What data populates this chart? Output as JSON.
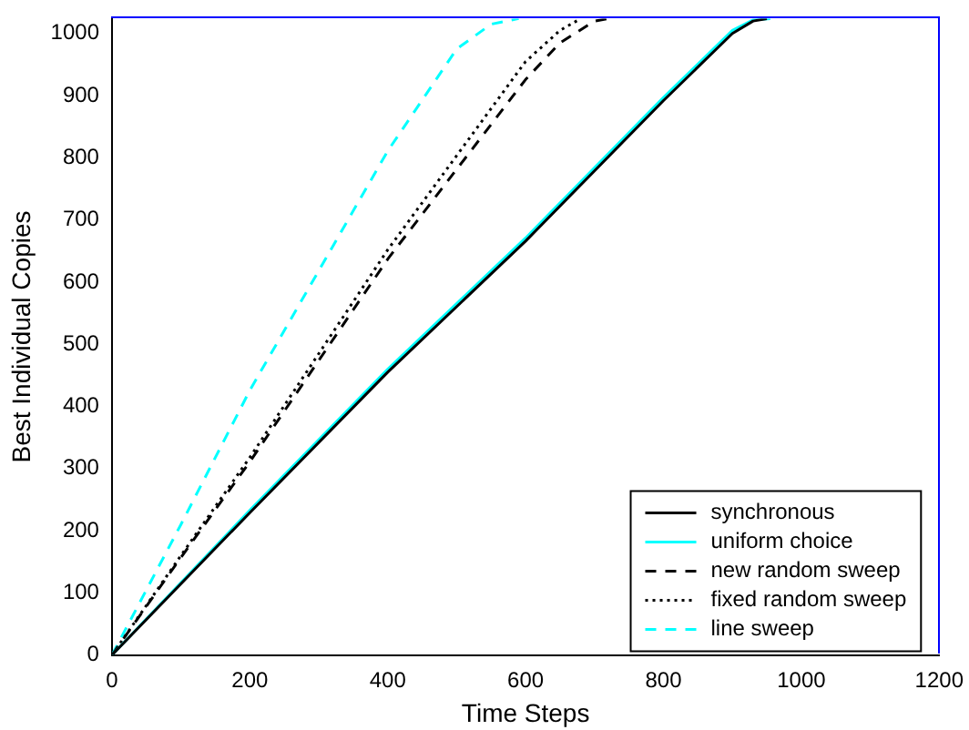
{
  "chart_data": {
    "type": "line",
    "xlabel": "Time Steps",
    "ylabel": "Best Individual Copies",
    "xlim": [
      0,
      1200
    ],
    "ylim": [
      0,
      1024
    ],
    "xticks": [
      0,
      200,
      400,
      600,
      800,
      1000,
      1200
    ],
    "yticks": [
      0,
      100,
      200,
      300,
      400,
      500,
      600,
      700,
      800,
      900,
      1000
    ],
    "grid": false,
    "legend": "bottom right",
    "marker": "none",
    "series": [
      {
        "name": "synchronous",
        "color": "#000000",
        "line_style": "solid",
        "x": [
          0,
          200,
          400,
          600,
          800,
          900,
          930,
          950
        ],
        "values": [
          0,
          229,
          455,
          666,
          892,
          1000,
          1020,
          1024
        ]
      },
      {
        "name": "uniform choice",
        "color": "#00ffff",
        "line_style": "solid",
        "x": [
          0,
          200,
          400,
          600,
          800,
          900,
          930,
          955
        ],
        "values": [
          0,
          233,
          460,
          671,
          897,
          1005,
          1022,
          1024
        ]
      },
      {
        "name": "new random sweep",
        "color": "#000000",
        "line_style": "dashed",
        "x": [
          0,
          100,
          200,
          400,
          600,
          650,
          700,
          720
        ],
        "values": [
          0,
          157,
          311,
          637,
          926,
          985,
          1020,
          1024
        ]
      },
      {
        "name": "fixed random sweep",
        "color": "#000000",
        "line_style": "dotted",
        "x": [
          0,
          100,
          200,
          400,
          600,
          650,
          680
        ],
        "values": [
          0,
          160,
          318,
          652,
          955,
          1005,
          1024
        ]
      },
      {
        "name": "line sweep",
        "color": "#00ffff",
        "line_style": "dashed",
        "x": [
          0,
          100,
          200,
          400,
          500,
          550,
          590
        ],
        "values": [
          0,
          210,
          426,
          811,
          975,
          1015,
          1024
        ]
      }
    ]
  }
}
